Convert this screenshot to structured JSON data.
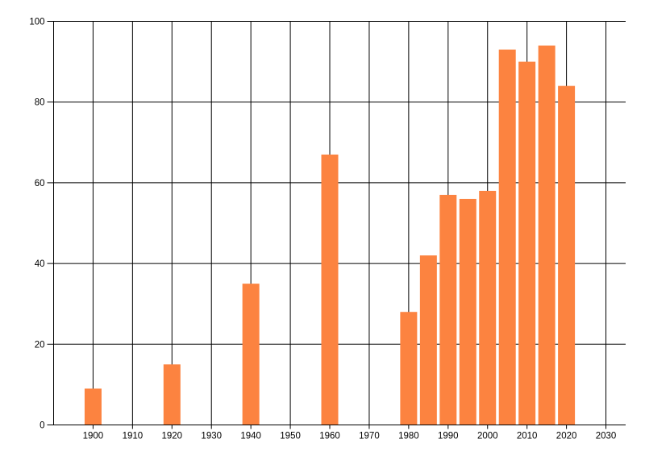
{
  "chart_data": {
    "type": "bar",
    "title": "",
    "xlabel": "",
    "ylabel": "",
    "x": [
      1900,
      1920,
      1940,
      1960,
      1980,
      1985,
      1990,
      1995,
      2000,
      2005,
      2010,
      2015,
      2020
    ],
    "values": [
      9,
      15,
      35,
      67,
      28,
      42,
      57,
      56,
      58,
      93,
      90,
      94,
      84
    ],
    "xlim": [
      1890,
      2035
    ],
    "ylim": [
      0,
      100
    ],
    "x_ticks": [
      1900,
      1910,
      1920,
      1930,
      1940,
      1950,
      1960,
      1970,
      1980,
      1990,
      2000,
      2010,
      2020,
      2030
    ],
    "y_ticks": [
      0,
      20,
      40,
      60,
      80,
      100
    ],
    "grid": "on",
    "legend": "none",
    "bar_color": "#FC8340",
    "grid_color": "#000000",
    "axis_color": "#000000",
    "tick_label_color": "#000000",
    "background_color": "#FFFFFF"
  }
}
